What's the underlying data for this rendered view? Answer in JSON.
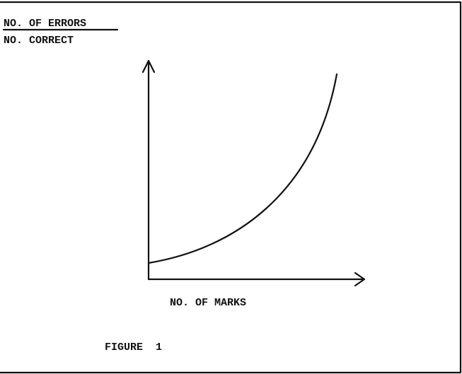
{
  "y_axis_label": {
    "numerator": "NO. OF ERRORS",
    "denominator": "NO. CORRECT"
  },
  "x_axis_label": "NO. OF MARKS",
  "caption": "FIGURE  1"
}
